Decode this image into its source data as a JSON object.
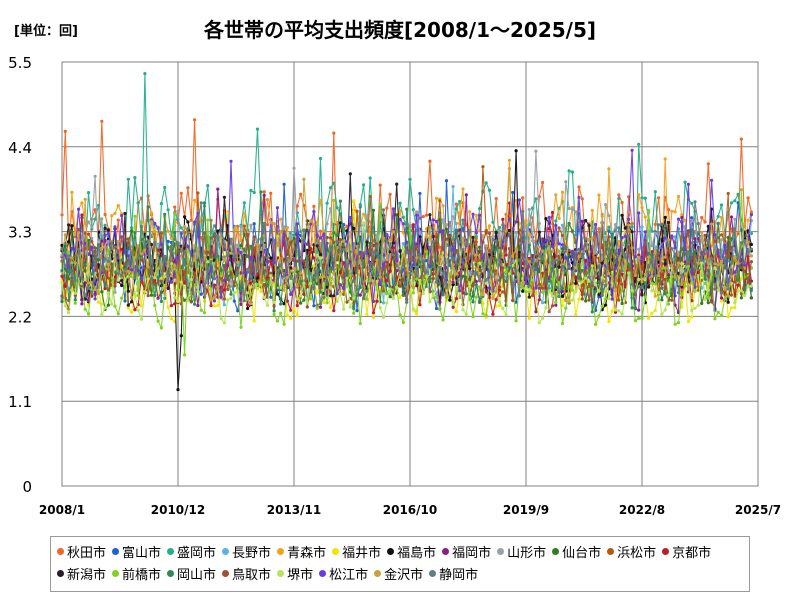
{
  "unit_label": "[単位：回]",
  "chart_data": {
    "type": "line",
    "title": "各世帯の平均支出頻度[2008/1～2025/5]",
    "xlabel": "",
    "ylabel": "",
    "ylim": [
      0,
      5.5
    ],
    "yticks": [
      "0",
      "1.1",
      "2.2",
      "3.3",
      "4.4",
      "5.5"
    ],
    "xlim": [
      "2008/1",
      "2025/7"
    ],
    "xticks": [
      "2008/1",
      "2010/12",
      "2013/11",
      "2016/10",
      "2019/9",
      "2022/8",
      "2025/7"
    ],
    "grid": true,
    "legend_position": "bottom",
    "series": [
      {
        "name": "秋田市",
        "color": "#f26522",
        "base": 3.2,
        "amp": 0.55,
        "seed": 1
      },
      {
        "name": "富山市",
        "color": "#1f5fd6",
        "base": 2.9,
        "amp": 0.45,
        "seed": 2
      },
      {
        "name": "盛岡市",
        "color": "#22b08a",
        "base": 3.3,
        "amp": 0.6,
        "seed": 3
      },
      {
        "name": "長野市",
        "color": "#5ab4e6",
        "base": 2.9,
        "amp": 0.4,
        "seed": 4
      },
      {
        "name": "青森市",
        "color": "#f5a11a",
        "base": 3.1,
        "amp": 0.5,
        "seed": 5
      },
      {
        "name": "福井市",
        "color": "#f2e600",
        "base": 2.6,
        "amp": 0.35,
        "seed": 6
      },
      {
        "name": "福島市",
        "color": "#111111",
        "base": 2.9,
        "amp": 0.45,
        "seed": 7
      },
      {
        "name": "福岡市",
        "color": "#8e1b8e",
        "base": 2.8,
        "amp": 0.4,
        "seed": 8
      },
      {
        "name": "山形市",
        "color": "#9aa0a6",
        "base": 3.0,
        "amp": 0.45,
        "seed": 9
      },
      {
        "name": "仙台市",
        "color": "#2e7d1e",
        "base": 2.8,
        "amp": 0.4,
        "seed": 10
      },
      {
        "name": "浜松市",
        "color": "#b35a12",
        "base": 2.9,
        "amp": 0.4,
        "seed": 11
      },
      {
        "name": "京都市",
        "color": "#c21a2a",
        "base": 2.7,
        "amp": 0.35,
        "seed": 12
      },
      {
        "name": "新潟市",
        "color": "#2a1a2a",
        "base": 2.9,
        "amp": 0.4,
        "seed": 13
      },
      {
        "name": "前橋市",
        "color": "#7ed321",
        "base": 2.6,
        "amp": 0.4,
        "seed": 14
      },
      {
        "name": "岡山市",
        "color": "#2e8b57",
        "base": 2.8,
        "amp": 0.4,
        "seed": 15
      },
      {
        "name": "鳥取市",
        "color": "#a0522d",
        "base": 2.8,
        "amp": 0.4,
        "seed": 16
      },
      {
        "name": "堺市",
        "color": "#b5e655",
        "base": 2.6,
        "amp": 0.35,
        "seed": 17
      },
      {
        "name": "松江市",
        "color": "#6a3be4",
        "base": 3.0,
        "amp": 0.45,
        "seed": 18
      },
      {
        "name": "金沢市",
        "color": "#c9a23a",
        "base": 2.9,
        "amp": 0.4,
        "seed": 19
      },
      {
        "name": "静岡市",
        "color": "#5f7f80",
        "base": 2.9,
        "amp": 0.4,
        "seed": 20
      }
    ]
  }
}
